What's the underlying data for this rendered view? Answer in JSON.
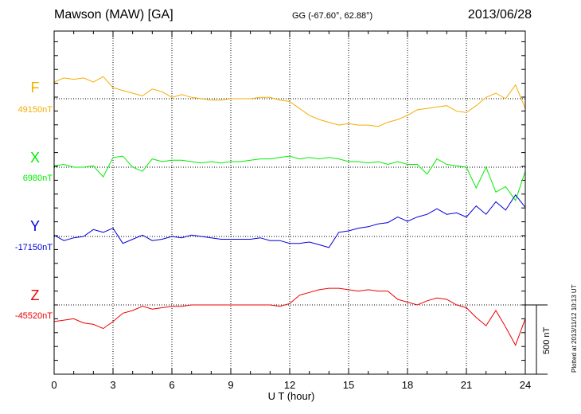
{
  "header": {
    "station": "Mawson (MAW)  [GA]",
    "coords": "GG (-67.60°,  62.88°)",
    "date": "2013/06/28"
  },
  "footer": {
    "xlabel": "U T (hour)",
    "plotted": "Plotted at 2013/11/12 10:13 UT",
    "scale_label": "500 nT"
  },
  "colors": {
    "F": "#f5ad00",
    "X": "#00ee00",
    "Y": "#0000dd",
    "Z": "#ee0000"
  },
  "chart_data": {
    "type": "line",
    "title": "Mawson (MAW)  [GA]",
    "xlabel": "U T (hour)",
    "ylabel": "",
    "xlim": [
      0,
      24
    ],
    "xticks": [
      0,
      3,
      6,
      9,
      12,
      15,
      18,
      21,
      24
    ],
    "grid": true,
    "scale_bar_nT": 500,
    "x": [
      0,
      0.5,
      1,
      1.5,
      2,
      2.5,
      3,
      3.5,
      4,
      4.5,
      5,
      5.5,
      6,
      6.5,
      7,
      7.5,
      8,
      8.5,
      9,
      9.5,
      10,
      10.5,
      11,
      11.5,
      12,
      12.5,
      13,
      13.5,
      14,
      14.5,
      15,
      15.5,
      16,
      16.5,
      17,
      17.5,
      18,
      18.5,
      19,
      19.5,
      20,
      20.5,
      21,
      21.5,
      22,
      22.5,
      23,
      23.5,
      24
    ],
    "series": [
      {
        "name": "F",
        "baseline_label": "49150nT",
        "baseline": 49150,
        "values": [
          49270,
          49300,
          49290,
          49300,
          49270,
          49310,
          49230,
          49210,
          49190,
          49170,
          49220,
          49200,
          49160,
          49180,
          49160,
          49150,
          49140,
          49140,
          49150,
          49150,
          49150,
          49160,
          49160,
          49140,
          49130,
          49080,
          49030,
          49000,
          48980,
          48960,
          48970,
          48960,
          48960,
          48950,
          48980,
          49000,
          49030,
          49070,
          49080,
          49090,
          49100,
          49060,
          49050,
          49100,
          49160,
          49190,
          49150,
          49250,
          49080
        ]
      },
      {
        "name": "X",
        "baseline_label": "6980nT",
        "baseline": 6980,
        "values": [
          6990,
          7000,
          6980,
          6980,
          6990,
          6910,
          7050,
          7060,
          6980,
          6950,
          7040,
          7020,
          7030,
          7030,
          7020,
          7010,
          7020,
          7010,
          7020,
          7020,
          7030,
          7040,
          7040,
          7050,
          7060,
          7040,
          7050,
          7040,
          7050,
          7040,
          7020,
          7020,
          7010,
          7020,
          7000,
          7020,
          7000,
          7000,
          6930,
          7040,
          7000,
          6990,
          6980,
          6830,
          6980,
          6800,
          6840,
          6740,
          6950
        ]
      },
      {
        "name": "Y",
        "baseline_label": "-17150nT",
        "baseline": -17150,
        "values": [
          -17140,
          -17180,
          -17160,
          -17150,
          -17100,
          -17120,
          -17090,
          -17200,
          -17170,
          -17140,
          -17180,
          -17170,
          -17150,
          -17160,
          -17140,
          -17150,
          -17160,
          -17170,
          -17170,
          -17170,
          -17170,
          -17160,
          -17180,
          -17180,
          -17200,
          -17200,
          -17190,
          -17210,
          -17230,
          -17120,
          -17110,
          -17090,
          -17080,
          -17060,
          -17050,
          -17010,
          -17040,
          -17010,
          -16990,
          -16950,
          -16990,
          -16980,
          -17010,
          -16930,
          -16990,
          -16900,
          -16960,
          -16850,
          -16940
        ]
      },
      {
        "name": "Z",
        "baseline_label": "-45520nT",
        "baseline": -45520,
        "values": [
          -45640,
          -45630,
          -45620,
          -45650,
          -45660,
          -45690,
          -45640,
          -45580,
          -45560,
          -45530,
          -45550,
          -45540,
          -45530,
          -45530,
          -45520,
          -45520,
          -45520,
          -45520,
          -45520,
          -45520,
          -45520,
          -45520,
          -45520,
          -45530,
          -45510,
          -45450,
          -45430,
          -45410,
          -45400,
          -45400,
          -45410,
          -45420,
          -45410,
          -45420,
          -45420,
          -45480,
          -45500,
          -45520,
          -45490,
          -45470,
          -45480,
          -45520,
          -45540,
          -45610,
          -45670,
          -45560,
          -45680,
          -45810,
          -45620
        ]
      }
    ]
  }
}
